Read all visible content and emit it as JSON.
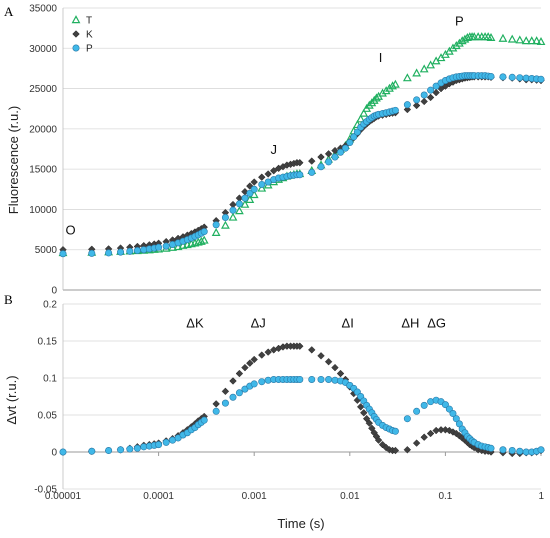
{
  "chart_data": [
    {
      "panel_label": "A",
      "type": "scatter",
      "xscale": "log",
      "xlim": [
        1e-05,
        1
      ],
      "ylim": [
        0,
        35000
      ],
      "ylabel": "Fluorescence (r.u.)",
      "yticks": [
        0,
        5000,
        10000,
        15000,
        20000,
        25000,
        30000,
        35000
      ],
      "ytick_labels": [
        "0",
        "5000",
        "10000",
        "15000",
        "20000",
        "25000",
        "30000",
        "35000"
      ],
      "legend_placement": "top-left",
      "annotations": [
        {
          "text": "O",
          "x": 1.2e-05,
          "y": 6900
        },
        {
          "text": "J",
          "x": 0.0016,
          "y": 16900
        },
        {
          "text": "I",
          "x": 0.021,
          "y": 28300
        },
        {
          "text": "P",
          "x": 0.14,
          "y": 32800
        }
      ],
      "series": [
        {
          "name": "T",
          "marker": "triangle",
          "color": "#20b060",
          "x": [
            1e-05,
            2e-05,
            3e-05,
            4e-05,
            5e-05,
            6e-05,
            7e-05,
            8e-05,
            9e-05,
            0.0001,
            0.00012,
            0.00014,
            0.00016,
            0.00018,
            0.0002,
            0.00022,
            0.00024,
            0.00026,
            0.00028,
            0.0003,
            0.0004,
            0.0005,
            0.0006,
            0.0007,
            0.0008,
            0.0009,
            0.001,
            0.0012,
            0.0014,
            0.0016,
            0.0018,
            0.002,
            0.0022,
            0.0024,
            0.0026,
            0.0028,
            0.003,
            0.004,
            0.005,
            0.006,
            0.007,
            0.008,
            0.009,
            0.01,
            0.011,
            0.012,
            0.013,
            0.014,
            0.015,
            0.016,
            0.017,
            0.018,
            0.019,
            0.02,
            0.022,
            0.024,
            0.026,
            0.028,
            0.03,
            0.04,
            0.05,
            0.06,
            0.07,
            0.08,
            0.09,
            0.1,
            0.11,
            0.12,
            0.13,
            0.14,
            0.15,
            0.16,
            0.17,
            0.18,
            0.19,
            0.2,
            0.22,
            0.24,
            0.26,
            0.28,
            0.3,
            0.4,
            0.5,
            0.6,
            0.7,
            0.8,
            0.9,
            1.0
          ],
          "y": [
            4600,
            4650,
            4700,
            4750,
            4800,
            4850,
            4900,
            4950,
            5000,
            5050,
            5150,
            5250,
            5350,
            5500,
            5600,
            5700,
            5800,
            5900,
            6000,
            6150,
            7100,
            8000,
            9000,
            9800,
            10600,
            11200,
            11800,
            12600,
            13000,
            13400,
            13700,
            13900,
            14100,
            14200,
            14300,
            14400,
            14400,
            14800,
            15500,
            16200,
            16800,
            17400,
            17900,
            18700,
            19700,
            20500,
            21200,
            21900,
            22500,
            22900,
            23200,
            23500,
            23800,
            24000,
            24400,
            24700,
            25000,
            25300,
            25500,
            26300,
            26900,
            27400,
            27900,
            28400,
            28800,
            29200,
            29600,
            30000,
            30300,
            30600,
            30900,
            31100,
            31300,
            31400,
            31400,
            31400,
            31400,
            31400,
            31400,
            31400,
            31300,
            31200,
            31100,
            31000,
            30900,
            30900,
            30900,
            30800
          ]
        },
        {
          "name": "K",
          "marker": "diamond",
          "color": "#404040",
          "x": [
            1e-05,
            2e-05,
            3e-05,
            4e-05,
            5e-05,
            6e-05,
            7e-05,
            8e-05,
            9e-05,
            0.0001,
            0.00012,
            0.00014,
            0.00016,
            0.00018,
            0.0002,
            0.00022,
            0.00024,
            0.00026,
            0.00028,
            0.0003,
            0.0004,
            0.0005,
            0.0006,
            0.0007,
            0.0008,
            0.0009,
            0.001,
            0.0012,
            0.0014,
            0.0016,
            0.0018,
            0.002,
            0.0022,
            0.0024,
            0.0026,
            0.0028,
            0.003,
            0.004,
            0.005,
            0.006,
            0.007,
            0.008,
            0.009,
            0.01,
            0.011,
            0.012,
            0.013,
            0.014,
            0.015,
            0.016,
            0.017,
            0.018,
            0.019,
            0.02,
            0.022,
            0.024,
            0.026,
            0.028,
            0.03,
            0.04,
            0.05,
            0.06,
            0.07,
            0.08,
            0.09,
            0.1,
            0.11,
            0.12,
            0.13,
            0.14,
            0.15,
            0.16,
            0.17,
            0.18,
            0.19,
            0.2,
            0.22,
            0.24,
            0.26,
            0.28,
            0.3,
            0.4,
            0.5,
            0.6,
            0.7,
            0.8,
            0.9,
            1.0
          ],
          "y": [
            5000,
            5050,
            5100,
            5200,
            5300,
            5400,
            5500,
            5600,
            5700,
            5800,
            6000,
            6200,
            6400,
            6600,
            6800,
            7000,
            7200,
            7400,
            7600,
            7800,
            8600,
            9600,
            10600,
            11400,
            12200,
            12900,
            13400,
            14000,
            14400,
            14800,
            15100,
            15300,
            15500,
            15600,
            15700,
            15800,
            15800,
            16000,
            16500,
            16900,
            17300,
            17600,
            17900,
            18400,
            18900,
            19400,
            19900,
            20300,
            20600,
            20900,
            21100,
            21300,
            21500,
            21600,
            21700,
            21800,
            21900,
            21950,
            22000,
            22400,
            22900,
            23400,
            23900,
            24500,
            25000,
            25300,
            25600,
            25800,
            26000,
            26100,
            26200,
            26300,
            26350,
            26400,
            26450,
            26450,
            26450,
            26450,
            26450,
            26450,
            26400,
            26350,
            26300,
            26200,
            26100,
            26100,
            26050,
            26000
          ]
        },
        {
          "name": "P",
          "marker": "circle",
          "color": "#40b8e8",
          "x": [
            1e-05,
            2e-05,
            3e-05,
            4e-05,
            5e-05,
            6e-05,
            7e-05,
            8e-05,
            9e-05,
            0.0001,
            0.00012,
            0.00014,
            0.00016,
            0.00018,
            0.0002,
            0.00022,
            0.00024,
            0.00026,
            0.00028,
            0.0003,
            0.0004,
            0.0005,
            0.0006,
            0.0007,
            0.0008,
            0.0009,
            0.001,
            0.0012,
            0.0014,
            0.0016,
            0.0018,
            0.002,
            0.0022,
            0.0024,
            0.0026,
            0.0028,
            0.003,
            0.004,
            0.005,
            0.006,
            0.007,
            0.008,
            0.009,
            0.01,
            0.011,
            0.012,
            0.013,
            0.014,
            0.015,
            0.016,
            0.017,
            0.018,
            0.019,
            0.02,
            0.022,
            0.024,
            0.026,
            0.028,
            0.03,
            0.04,
            0.05,
            0.06,
            0.07,
            0.08,
            0.09,
            0.1,
            0.11,
            0.12,
            0.13,
            0.14,
            0.15,
            0.16,
            0.17,
            0.18,
            0.19,
            0.2,
            0.22,
            0.24,
            0.26,
            0.28,
            0.3,
            0.4,
            0.5,
            0.6,
            0.7,
            0.8,
            0.9,
            1.0
          ],
          "y": [
            4500,
            4550,
            4600,
            4700,
            4800,
            4900,
            5000,
            5100,
            5200,
            5300,
            5450,
            5650,
            5850,
            6050,
            6250,
            6450,
            6650,
            6850,
            7050,
            7250,
            8100,
            9000,
            9900,
            10700,
            11400,
            12000,
            12500,
            13100,
            13400,
            13700,
            13900,
            14000,
            14100,
            14200,
            14250,
            14300,
            14300,
            14600,
            15300,
            15900,
            16500,
            17100,
            17600,
            18300,
            19000,
            19600,
            20200,
            20600,
            20900,
            21200,
            21400,
            21600,
            21700,
            21800,
            21900,
            22000,
            22100,
            22200,
            22300,
            23000,
            23600,
            24200,
            24800,
            25300,
            25700,
            26000,
            26200,
            26350,
            26450,
            26500,
            26550,
            26600,
            26600,
            26600,
            26600,
            26600,
            26600,
            26600,
            26600,
            26550,
            26500,
            26450,
            26400,
            26350,
            26300,
            26250,
            26200,
            26150
          ]
        }
      ]
    },
    {
      "panel_label": "B",
      "type": "scatter",
      "xscale": "log",
      "xlim": [
        1e-05,
        1
      ],
      "ylim": [
        -0.05,
        0.2
      ],
      "xlabel": "Time (s)",
      "ylabel": "Δvt (r.u.)",
      "yticks": [
        -0.05,
        0,
        0.05,
        0.1,
        0.15,
        0.2
      ],
      "ytick_labels": [
        "-0.05",
        "0",
        "0.05",
        "0.1",
        "0.15",
        "0.2"
      ],
      "xticks": [
        1e-05,
        0.0001,
        0.001,
        0.01,
        0.1,
        1
      ],
      "xtick_labels": [
        "0.00001",
        "0.0001",
        "0.001",
        "0.01",
        "0.1",
        "1"
      ],
      "annotations": [
        {
          "text": "ΔK",
          "x": 0.00024,
          "y": 0.168
        },
        {
          "text": "ΔJ",
          "x": 0.0011,
          "y": 0.168
        },
        {
          "text": "ΔI",
          "x": 0.0095,
          "y": 0.168
        },
        {
          "text": "ΔH",
          "x": 0.043,
          "y": 0.168
        },
        {
          "text": "ΔG",
          "x": 0.081,
          "y": 0.168
        }
      ],
      "series": [
        {
          "name": "K",
          "marker": "diamond",
          "color": "#404040",
          "x": [
            1e-05,
            2e-05,
            3e-05,
            4e-05,
            5e-05,
            6e-05,
            7e-05,
            8e-05,
            9e-05,
            0.0001,
            0.00012,
            0.00014,
            0.00016,
            0.00018,
            0.0002,
            0.00022,
            0.00024,
            0.00026,
            0.00028,
            0.0003,
            0.0004,
            0.0005,
            0.0006,
            0.0007,
            0.0008,
            0.0009,
            0.001,
            0.0012,
            0.0014,
            0.0016,
            0.0018,
            0.002,
            0.0022,
            0.0024,
            0.0026,
            0.0028,
            0.003,
            0.004,
            0.005,
            0.006,
            0.007,
            0.008,
            0.009,
            0.01,
            0.011,
            0.012,
            0.013,
            0.014,
            0.015,
            0.016,
            0.017,
            0.018,
            0.019,
            0.02,
            0.022,
            0.024,
            0.026,
            0.028,
            0.03,
            0.04,
            0.05,
            0.06,
            0.07,
            0.08,
            0.09,
            0.1,
            0.11,
            0.12,
            0.13,
            0.14,
            0.15,
            0.16,
            0.17,
            0.18,
            0.19,
            0.2,
            0.22,
            0.24,
            0.26,
            0.28,
            0.3,
            0.4,
            0.5,
            0.6,
            0.7,
            0.8,
            0.9,
            1.0
          ],
          "y": [
            0,
            0.001,
            0.002,
            0.003,
            0.005,
            0.007,
            0.009,
            0.01,
            0.011,
            0.012,
            0.015,
            0.018,
            0.022,
            0.026,
            0.03,
            0.034,
            0.038,
            0.042,
            0.045,
            0.048,
            0.065,
            0.082,
            0.096,
            0.106,
            0.114,
            0.12,
            0.125,
            0.131,
            0.135,
            0.138,
            0.14,
            0.142,
            0.143,
            0.143,
            0.143,
            0.143,
            0.143,
            0.138,
            0.13,
            0.122,
            0.114,
            0.106,
            0.098,
            0.088,
            0.079,
            0.07,
            0.061,
            0.053,
            0.045,
            0.039,
            0.032,
            0.026,
            0.021,
            0.016,
            0.01,
            0.006,
            0.003,
            0.002,
            0.002,
            0.003,
            0.012,
            0.02,
            0.025,
            0.029,
            0.03,
            0.03,
            0.029,
            0.027,
            0.025,
            0.022,
            0.019,
            0.016,
            0.013,
            0.01,
            0.008,
            0.006,
            0.003,
            0.002,
            0.001,
            0.001,
            0,
            -0.001,
            -0.002,
            -0.002,
            -0.001,
            -0.001,
            0,
            0.002
          ]
        },
        {
          "name": "P",
          "marker": "circle",
          "color": "#40b8e8",
          "x": [
            1e-05,
            2e-05,
            3e-05,
            4e-05,
            5e-05,
            6e-05,
            7e-05,
            8e-05,
            9e-05,
            0.0001,
            0.00012,
            0.00014,
            0.00016,
            0.00018,
            0.0002,
            0.00022,
            0.00024,
            0.00026,
            0.00028,
            0.0003,
            0.0004,
            0.0005,
            0.0006,
            0.0007,
            0.0008,
            0.0009,
            0.001,
            0.0012,
            0.0014,
            0.0016,
            0.0018,
            0.002,
            0.0022,
            0.0024,
            0.0026,
            0.0028,
            0.003,
            0.004,
            0.005,
            0.006,
            0.007,
            0.008,
            0.009,
            0.01,
            0.011,
            0.012,
            0.013,
            0.014,
            0.015,
            0.016,
            0.017,
            0.018,
            0.019,
            0.02,
            0.022,
            0.024,
            0.026,
            0.028,
            0.03,
            0.04,
            0.05,
            0.06,
            0.07,
            0.08,
            0.09,
            0.1,
            0.11,
            0.12,
            0.13,
            0.14,
            0.15,
            0.16,
            0.17,
            0.18,
            0.19,
            0.2,
            0.22,
            0.24,
            0.26,
            0.28,
            0.3,
            0.4,
            0.5,
            0.6,
            0.7,
            0.8,
            0.9,
            1.0
          ],
          "y": [
            0,
            0.001,
            0.002,
            0.003,
            0.004,
            0.005,
            0.007,
            0.008,
            0.009,
            0.01,
            0.013,
            0.016,
            0.019,
            0.023,
            0.026,
            0.03,
            0.033,
            0.037,
            0.04,
            0.043,
            0.055,
            0.066,
            0.074,
            0.08,
            0.085,
            0.089,
            0.092,
            0.095,
            0.097,
            0.098,
            0.098,
            0.098,
            0.098,
            0.098,
            0.098,
            0.098,
            0.098,
            0.098,
            0.098,
            0.098,
            0.097,
            0.096,
            0.094,
            0.09,
            0.086,
            0.081,
            0.075,
            0.069,
            0.063,
            0.058,
            0.053,
            0.048,
            0.044,
            0.04,
            0.036,
            0.033,
            0.031,
            0.029,
            0.028,
            0.045,
            0.055,
            0.063,
            0.068,
            0.07,
            0.068,
            0.064,
            0.058,
            0.052,
            0.045,
            0.038,
            0.031,
            0.026,
            0.021,
            0.018,
            0.015,
            0.013,
            0.01,
            0.008,
            0.007,
            0.006,
            0.005,
            0.003,
            0.002,
            0.001,
            0,
            0,
            0.001,
            0.003
          ]
        }
      ]
    }
  ]
}
